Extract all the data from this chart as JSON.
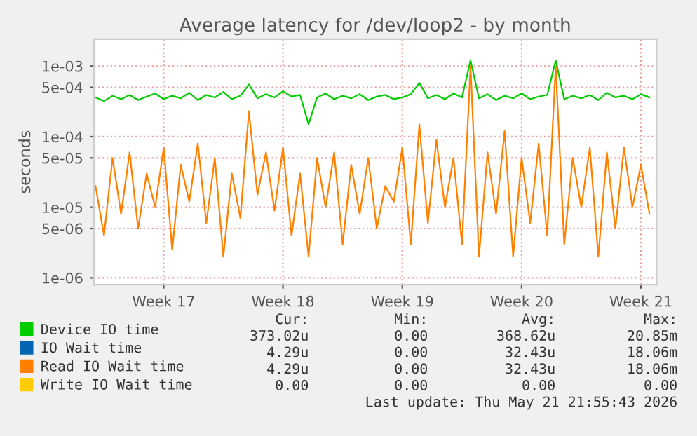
{
  "chart_data": {
    "type": "line",
    "title": "Average latency for /dev/loop2 - by month",
    "ylabel": "seconds",
    "log": "y",
    "grid": true,
    "legend": "bottom",
    "marker": "none",
    "line_style": "solid",
    "ylim": [
      8e-07,
      0.0024
    ],
    "yticks": [
      {
        "value": 1e-06,
        "label": "1e-06"
      },
      {
        "value": 5e-06,
        "label": "5e-06"
      },
      {
        "value": 1e-05,
        "label": "1e-05"
      },
      {
        "value": 5e-05,
        "label": "5e-05"
      },
      {
        "value": 0.0001,
        "label": "1e-04"
      },
      {
        "value": 0.0005,
        "label": "5e-04"
      },
      {
        "value": 0.001,
        "label": "1e-03"
      }
    ],
    "xlim": [
      "2026-04-18T22:00",
      "2026-05-21T22:00"
    ],
    "xticks": [
      {
        "value": "2026-04-23",
        "label": "Week 17"
      },
      {
        "value": "2026-04-30",
        "label": "Week 18"
      },
      {
        "value": "2026-05-07",
        "label": "Week 19"
      },
      {
        "value": "2026-05-14",
        "label": "Week 20"
      },
      {
        "value": "2026-05-21",
        "label": "Week 21"
      }
    ],
    "x": [
      "2026-04-19T00:00",
      "2026-04-19T12:00",
      "2026-04-20T00:00",
      "2026-04-20T12:00",
      "2026-04-21T00:00",
      "2026-04-21T12:00",
      "2026-04-22T00:00",
      "2026-04-22T12:00",
      "2026-04-23T00:00",
      "2026-04-23T12:00",
      "2026-04-24T00:00",
      "2026-04-24T12:00",
      "2026-04-25T00:00",
      "2026-04-25T12:00",
      "2026-04-26T00:00",
      "2026-04-26T12:00",
      "2026-04-27T00:00",
      "2026-04-27T12:00",
      "2026-04-28T00:00",
      "2026-04-28T12:00",
      "2026-04-29T00:00",
      "2026-04-29T12:00",
      "2026-04-30T00:00",
      "2026-04-30T12:00",
      "2026-05-01T00:00",
      "2026-05-01T12:00",
      "2026-05-02T00:00",
      "2026-05-02T12:00",
      "2026-05-03T00:00",
      "2026-05-03T12:00",
      "2026-05-04T00:00",
      "2026-05-04T12:00",
      "2026-05-05T00:00",
      "2026-05-05T12:00",
      "2026-05-06T00:00",
      "2026-05-06T12:00",
      "2026-05-07T00:00",
      "2026-05-07T12:00",
      "2026-05-08T00:00",
      "2026-05-08T12:00",
      "2026-05-09T00:00",
      "2026-05-09T12:00",
      "2026-05-10T00:00",
      "2026-05-10T12:00",
      "2026-05-11T00:00",
      "2026-05-11T12:00",
      "2026-05-12T00:00",
      "2026-05-12T12:00",
      "2026-05-13T00:00",
      "2026-05-13T12:00",
      "2026-05-14T00:00",
      "2026-05-14T12:00",
      "2026-05-15T00:00",
      "2026-05-15T12:00",
      "2026-05-16T00:00",
      "2026-05-16T12:00",
      "2026-05-17T00:00",
      "2026-05-17T12:00",
      "2026-05-18T00:00",
      "2026-05-18T12:00",
      "2026-05-19T00:00",
      "2026-05-19T12:00",
      "2026-05-20T00:00",
      "2026-05-20T12:00",
      "2026-05-21T00:00",
      "2026-05-21T12:00"
    ],
    "series": [
      {
        "name": "Device IO time",
        "color": "#00cc00",
        "values": [
          0.00036,
          0.00032,
          0.00038,
          0.00034,
          0.00039,
          0.00033,
          0.00037,
          0.00041,
          0.00034,
          0.00038,
          0.00035,
          0.00042,
          0.00033,
          0.00039,
          0.00036,
          0.00043,
          0.00034,
          0.00038,
          0.00055,
          0.00035,
          0.0004,
          0.00036,
          0.00044,
          0.00037,
          0.00039,
          0.00015,
          0.00036,
          0.00041,
          0.00034,
          0.00038,
          0.00035,
          0.0004,
          0.00033,
          0.00037,
          0.00039,
          0.00034,
          0.00036,
          0.0004,
          0.00058,
          0.00035,
          0.00039,
          0.00034,
          0.00041,
          0.00036,
          0.0012,
          0.00035,
          0.0004,
          0.00033,
          0.00038,
          0.00035,
          0.00041,
          0.00034,
          0.00037,
          0.00039,
          0.0012,
          0.00034,
          0.00038,
          0.00035,
          0.00039,
          0.00033,
          0.00042,
          0.00036,
          0.00038,
          0.00034,
          0.0004,
          0.00036
        ]
      },
      {
        "name": "IO Wait time",
        "color": "#0066b3",
        "values": [
          null,
          null,
          null,
          null,
          null,
          null,
          null,
          null,
          null,
          null,
          null,
          null,
          null,
          null,
          null,
          null,
          null,
          null,
          null,
          null,
          null,
          null,
          null,
          null,
          null,
          null,
          null,
          null,
          null,
          null,
          null,
          null,
          null,
          null,
          null,
          null,
          null,
          null,
          null,
          null,
          null,
          null,
          null,
          null,
          null,
          null,
          null,
          null,
          null,
          null,
          null,
          null,
          null,
          null,
          null,
          null,
          null,
          null,
          null,
          null,
          null,
          null,
          null,
          null,
          null,
          null
        ]
      },
      {
        "name": "Read IO Wait time",
        "color": "#ff8000",
        "values": [
          2e-05,
          4e-06,
          5e-05,
          8e-06,
          6e-05,
          5e-06,
          3e-05,
          1e-05,
          7e-05,
          2.5e-06,
          4e-05,
          1.2e-05,
          8e-05,
          6e-06,
          5e-05,
          2e-06,
          3e-05,
          7e-06,
          0.00023,
          1.5e-05,
          6e-05,
          9e-06,
          7e-05,
          4e-06,
          3e-05,
          2e-06,
          5e-05,
          1e-05,
          6e-05,
          3e-06,
          4e-05,
          8e-06,
          5e-05,
          5e-06,
          2e-05,
          1.2e-05,
          7e-05,
          3e-06,
          0.00015,
          6e-06,
          9e-05,
          1e-05,
          5e-05,
          3e-06,
          0.001,
          2e-06,
          6e-05,
          8e-06,
          0.00012,
          2e-06,
          5e-05,
          6e-06,
          8e-05,
          4e-06,
          0.001,
          3e-06,
          5e-05,
          1e-05,
          7e-05,
          2e-06,
          6e-05,
          5e-06,
          7e-05,
          1e-05,
          4e-05,
          8e-06
        ]
      },
      {
        "name": "Write IO Wait time",
        "color": "#ffcc00",
        "values": [
          null,
          null,
          null,
          null,
          null,
          null,
          null,
          null,
          null,
          null,
          null,
          null,
          null,
          null,
          null,
          null,
          null,
          null,
          null,
          null,
          null,
          null,
          null,
          null,
          null,
          null,
          null,
          null,
          null,
          null,
          null,
          null,
          null,
          null,
          null,
          null,
          null,
          null,
          null,
          null,
          null,
          null,
          null,
          null,
          null,
          null,
          null,
          null,
          null,
          null,
          null,
          null,
          null,
          null,
          null,
          null,
          null,
          null,
          null,
          null,
          null,
          null,
          null,
          null,
          null,
          null
        ]
      }
    ],
    "annotations": [
      "Cur:",
      "Min:",
      "Avg:",
      "Max:",
      "373.02u",
      "0.00",
      "368.62u",
      "20.85m",
      "4.29u",
      "0.00",
      "32.43u",
      "18.06m",
      "4.29u",
      "0.00",
      "32.43u",
      "18.06m",
      "0.00",
      "0.00",
      "0.00",
      "0.00",
      "Last update: Thu May 21 21:55:43 2026"
    ]
  }
}
